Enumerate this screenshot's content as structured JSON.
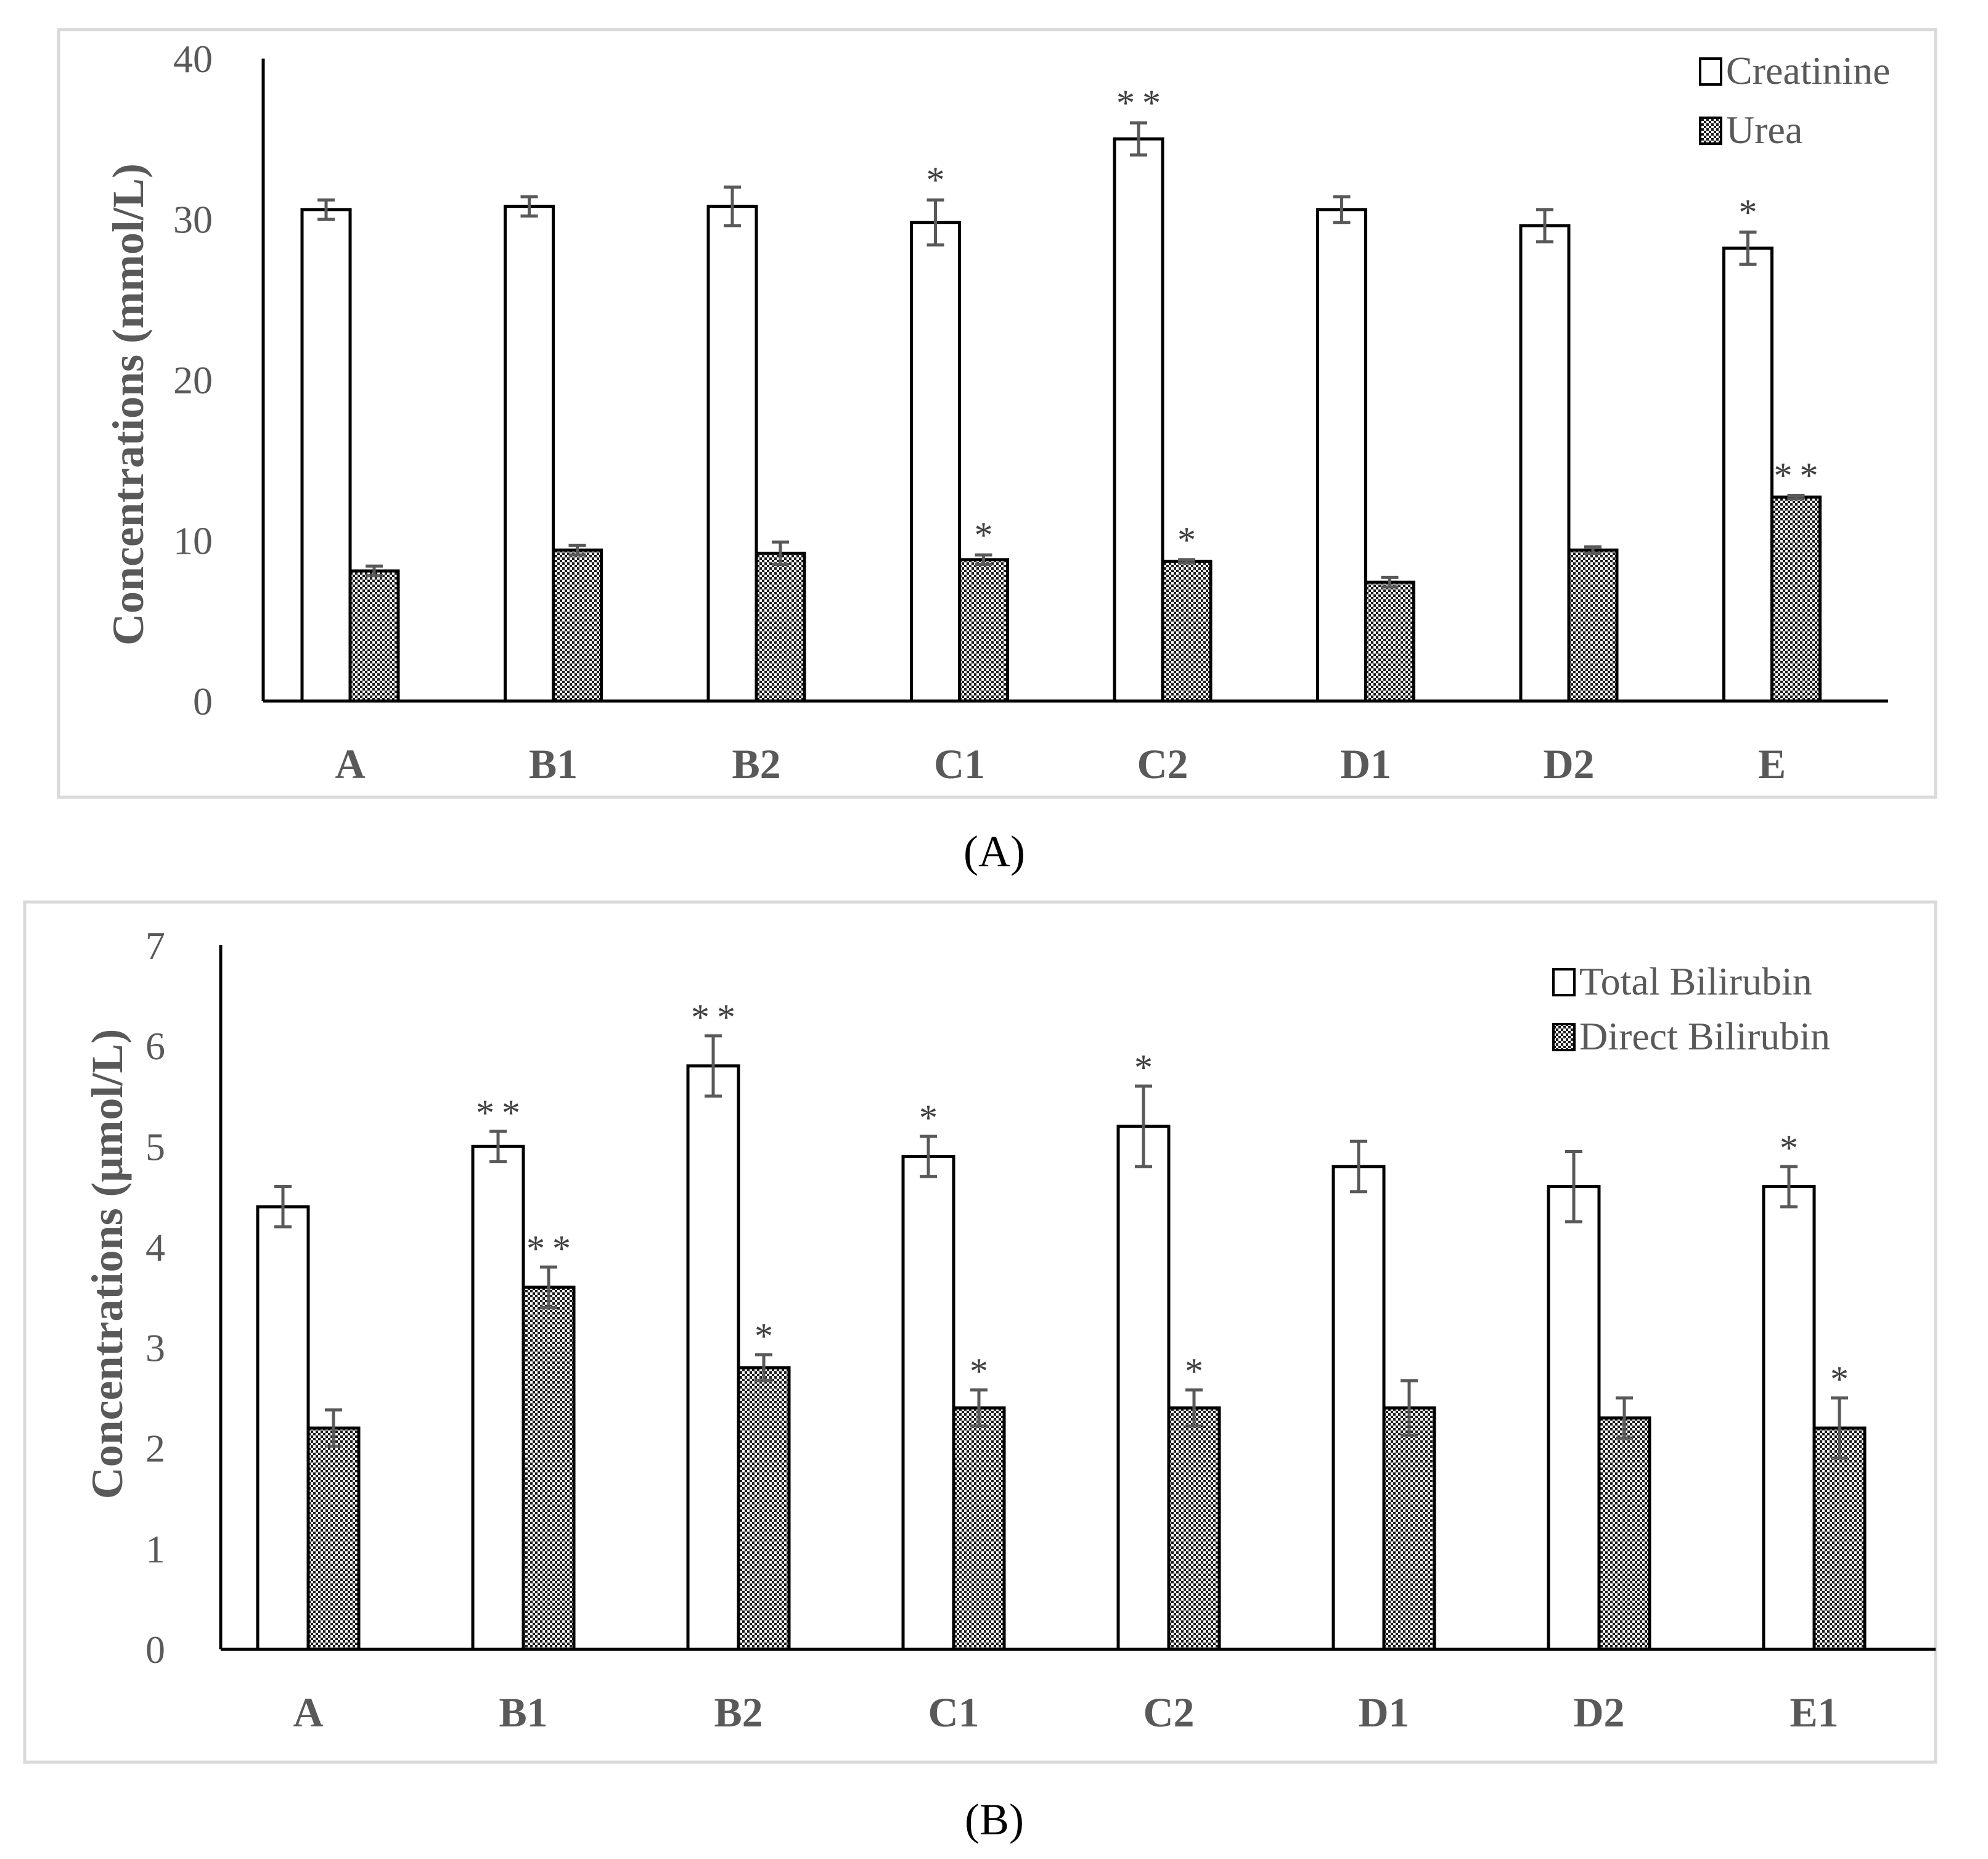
{
  "chart_data": [
    {
      "type": "bar",
      "panel_label": "A",
      "caption": "(A)",
      "ylabel": "Concentrations (mmol/L)",
      "xlabel": "",
      "ylim": [
        0,
        40
      ],
      "yticks": [
        0,
        10,
        20,
        30,
        40
      ],
      "legend_position": "top-right",
      "categories": [
        "A",
        "B1",
        "B2",
        "C1",
        "C2",
        "D1",
        "D2",
        "E"
      ],
      "series": [
        {
          "name": "Creatinine",
          "pattern": "white",
          "values": [
            30.6,
            30.8,
            30.8,
            29.8,
            35.0,
            30.6,
            29.6,
            28.2
          ],
          "errors": [
            0.6,
            0.6,
            1.2,
            1.4,
            1.0,
            0.8,
            1.0,
            1.0
          ],
          "significance": [
            "",
            "",
            "",
            "*",
            "**",
            "",
            "",
            "*"
          ]
        },
        {
          "name": "Urea",
          "pattern": "checkered",
          "values": [
            8.1,
            9.4,
            9.2,
            8.8,
            8.7,
            7.4,
            9.4,
            12.7
          ],
          "errors": [
            0.3,
            0.3,
            0.7,
            0.3,
            0.1,
            0.3,
            0.2,
            0.1
          ],
          "significance": [
            "",
            "",
            "",
            "*",
            "*",
            "",
            "",
            "**"
          ]
        }
      ]
    },
    {
      "type": "bar",
      "panel_label": "B",
      "caption": "(B)",
      "ylabel": "Concentrations (μmol/L)",
      "xlabel": "",
      "ylim": [
        0,
        7
      ],
      "yticks": [
        0,
        1,
        2,
        3,
        4,
        5,
        6,
        7
      ],
      "legend_position": "top-right",
      "categories": [
        "A",
        "B1",
        "B2",
        "C1",
        "C2",
        "D1",
        "D2",
        "E1"
      ],
      "series": [
        {
          "name": "Total Bilirubin",
          "pattern": "white",
          "values": [
            4.4,
            5.0,
            5.8,
            4.9,
            5.2,
            4.8,
            4.6,
            4.6
          ],
          "errors": [
            0.2,
            0.15,
            0.3,
            0.2,
            0.4,
            0.25,
            0.35,
            0.2
          ],
          "significance": [
            "",
            "**",
            "**",
            "*",
            "*",
            "",
            "",
            "*"
          ]
        },
        {
          "name": "Direct Bilirubin",
          "pattern": "checkered",
          "values": [
            2.2,
            3.6,
            2.8,
            2.4,
            2.4,
            2.4,
            2.3,
            2.2
          ],
          "errors": [
            0.18,
            0.2,
            0.13,
            0.18,
            0.18,
            0.27,
            0.2,
            0.3
          ],
          "significance": [
            "",
            "**",
            "*",
            "*",
            "*",
            "",
            "",
            "*"
          ]
        }
      ]
    }
  ]
}
